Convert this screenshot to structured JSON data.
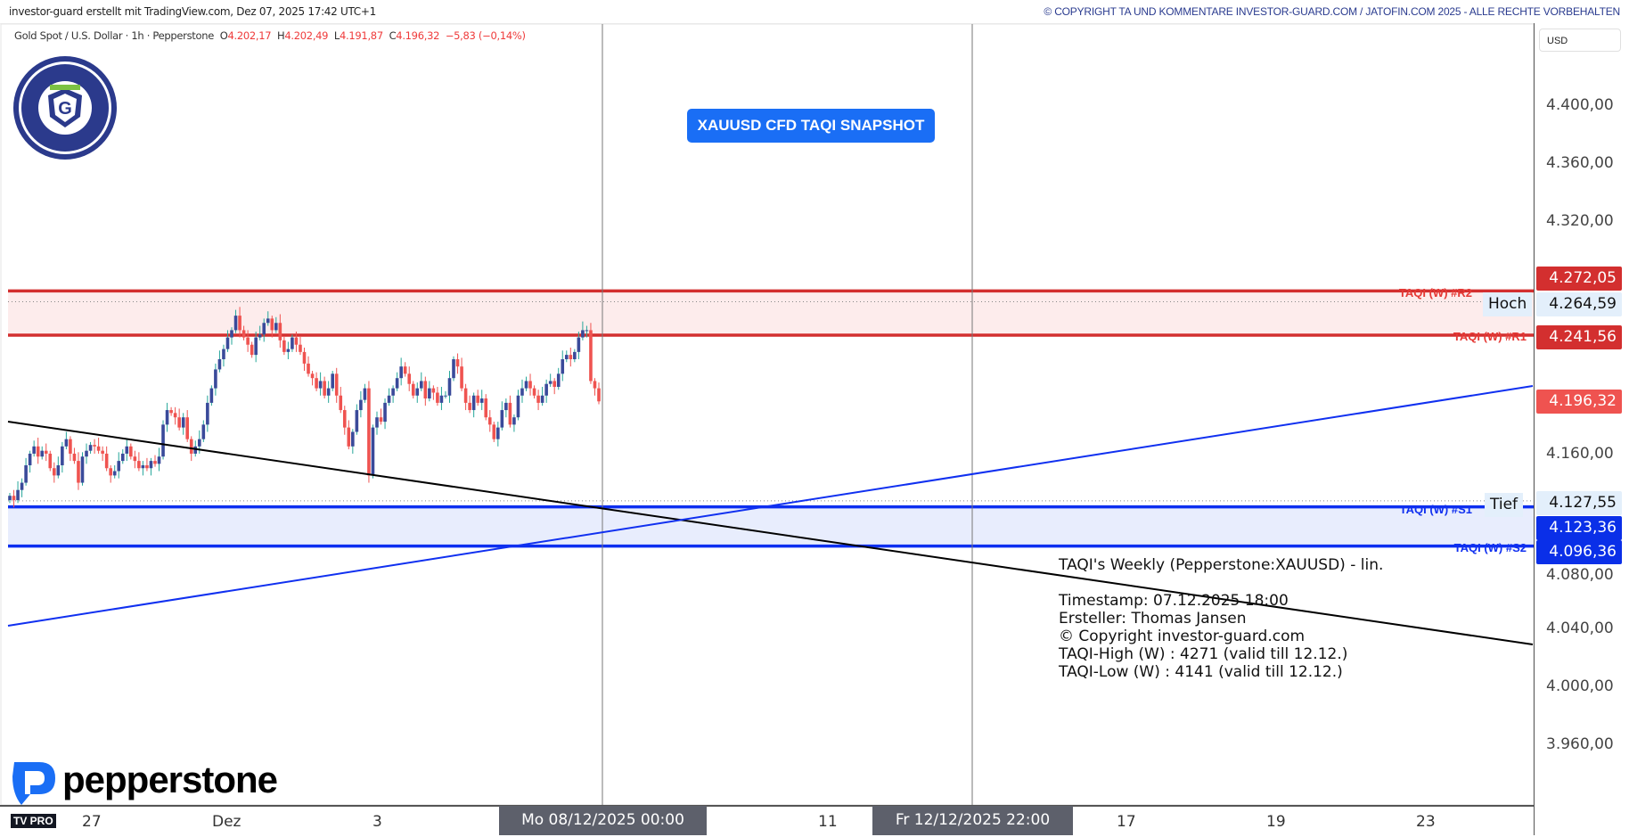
{
  "header": {
    "creator": "investor-guard erstellt mit TradingView.com, Dez 07, 2025 17:42 UTC+1",
    "copyright": "© COPYRIGHT TA UND KOMMENTARE INVESTOR-GUARD.COM / JATOFIN.COM 2025 - ALLE RECHTE VORBEHALTEN"
  },
  "legend": {
    "symbol": "Gold Spot / U.S. Dollar · 1h · Pepperstone",
    "o_label": "O",
    "o": "4.202,17",
    "h_label": "H",
    "h": "4.202,49",
    "l_label": "L",
    "l": "4.191,87",
    "c_label": "C",
    "c": "4.196,32",
    "change": "−5,83 (−0,14%)"
  },
  "currency": "USD",
  "snapshot_label": "XAUUSD CFD TAQI SNAPSHOT",
  "logos": {
    "badge": "COMPLIANCE CHECKED INVESTOR-GUARD",
    "broker": "pepperstone",
    "tv": "TV PRO"
  },
  "note": {
    "line1": "TAQI's Weekly (Pepperstone:XAUUSD) - lin.",
    "line2": "Timestamp: 07.12.2025 18:00",
    "line3": "Ersteller: Thomas Jansen",
    "line4": "© Copyright investor-guard.com",
    "line5": "TAQI-High (W) : 4271 (valid till 12.12.)",
    "line6": "TAQI-Low (W) : 4141 (valid till 12.12.)"
  },
  "colors": {
    "bull": "#3a4a9a",
    "bull_wick": "#26a69a",
    "bear": "#ef5350",
    "resistance": "#d32f2f",
    "support": "#0d2ff0",
    "trend_black": "#000000",
    "trend_blue": "#1030f0",
    "accent": "#1a6ef5"
  },
  "chart_data": {
    "type": "candlestick",
    "timeframe": "1h",
    "ylim": [
      3940,
      4420
    ],
    "price_ticks": [
      "4.400,00",
      "4.360,00",
      "4.320,00",
      "4.160,00",
      "4.080,00",
      "4.040,00",
      "4.000,00",
      "3.960,00"
    ],
    "price_tick_values": [
      4400,
      4360,
      4320,
      4160,
      4080,
      4040,
      4000,
      3960
    ],
    "time_ticks": [
      "27",
      "Dez",
      "3",
      "11",
      "17",
      "19",
      "23"
    ],
    "crosshair_times": [
      "Mo 08/12/2025   00:00",
      "Fr 12/12/2025   22:00"
    ],
    "closes": [
      4131,
      4128,
      4135,
      4140,
      4152,
      4160,
      4165,
      4158,
      4162,
      4160,
      4150,
      4145,
      4152,
      4165,
      4170,
      4160,
      4155,
      4140,
      4158,
      4162,
      4166,
      4165,
      4162,
      4160,
      4150,
      4145,
      4148,
      4155,
      4160,
      4165,
      4158,
      4155,
      4150,
      4152,
      4150,
      4155,
      4153,
      4158,
      4180,
      4190,
      4188,
      4185,
      4178,
      4185,
      4170,
      4160,
      4165,
      4170,
      4180,
      4195,
      4205,
      4218,
      4225,
      4232,
      4240,
      4245,
      4255,
      4245,
      4240,
      4235,
      4228,
      4240,
      4242,
      4250,
      4253,
      4245,
      4250,
      4238,
      4230,
      4232,
      4240,
      4235,
      4230,
      4222,
      4215,
      4212,
      4205,
      4210,
      4200,
      4205,
      4215,
      4200,
      4190,
      4178,
      4165,
      4175,
      4190,
      4197,
      4205,
      4145,
      4178,
      4185,
      4182,
      4195,
      4200,
      4205,
      4212,
      4220,
      4215,
      4208,
      4200,
      4205,
      4210,
      4198,
      4205,
      4202,
      4195,
      4200,
      4200,
      4212,
      4225,
      4220,
      4205,
      4195,
      4190,
      4200,
      4195,
      4198,
      4185,
      4180,
      4170,
      4178,
      4190,
      4195,
      4180,
      4185,
      4200,
      4205,
      4210,
      4205,
      4200,
      4195,
      4200,
      4208,
      4210,
      4206,
      4215,
      4225,
      4228,
      4225,
      4230,
      4240,
      4245,
      4245,
      4210,
      4205,
      4196
    ],
    "levels": [
      {
        "name": "TAQI (W) #R2",
        "value": 4272.05,
        "label": "4.272,05",
        "kind": "resistance"
      },
      {
        "name": "TAQI (W) #R1",
        "value": 4241.56,
        "label": "4.241,56",
        "kind": "resistance"
      },
      {
        "name": "TAQI (W) #S1",
        "value": 4123.36,
        "label": "4.123,36",
        "kind": "support"
      },
      {
        "name": "TAQI (W) #S2",
        "value": 4096.36,
        "label": "4.096,36",
        "kind": "support"
      }
    ],
    "high": {
      "label": "Hoch",
      "value": 4264.59,
      "text": "4.264,59"
    },
    "low": {
      "label": "Tief",
      "value": 4127.55,
      "text": "4.127,55"
    },
    "last": {
      "value": 4196.32,
      "text": "4.196,32"
    }
  }
}
